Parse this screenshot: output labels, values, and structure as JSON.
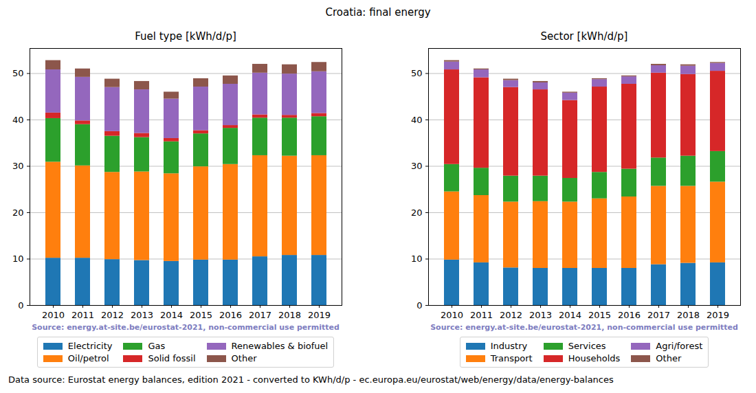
{
  "title": "Croatia: final energy",
  "caption": "Data source: Eurostat energy balances, edition 2021 - converted to KWh/d/p - ec.europa.eu/eurostat/web/energy/data/energy-balances",
  "chart_data": [
    {
      "type": "bar",
      "title": "Fuel type [kWh/d/p]",
      "annotations": [
        "Source: energy.at-site.be/eurostat-2021, non-commercial use permitted"
      ],
      "categories": [
        "2010",
        "2011",
        "2012",
        "2013",
        "2014",
        "2015",
        "2016",
        "2017",
        "2018",
        "2019"
      ],
      "series": [
        {
          "name": "Electricity",
          "color": "#1f77b4",
          "values": [
            10.2,
            10.2,
            9.9,
            9.7,
            9.5,
            9.8,
            9.8,
            10.5,
            10.8,
            10.8
          ]
        },
        {
          "name": "Oil/petrol",
          "color": "#ff7f0e",
          "values": [
            20.7,
            19.9,
            18.8,
            19.1,
            18.9,
            20.1,
            20.6,
            21.8,
            21.4,
            21.5
          ]
        },
        {
          "name": "Gas",
          "color": "#2ca02c",
          "values": [
            9.4,
            8.9,
            7.8,
            7.4,
            6.9,
            7.1,
            7.8,
            8.1,
            8.2,
            8.4
          ]
        },
        {
          "name": "Solid fossil",
          "color": "#d62728",
          "values": [
            1.2,
            0.8,
            1.0,
            0.9,
            0.7,
            0.7,
            0.6,
            0.7,
            0.6,
            0.7
          ]
        },
        {
          "name": "Renewables & biofuel",
          "color": "#9467bd",
          "values": [
            9.3,
            9.4,
            9.5,
            9.4,
            8.5,
            9.4,
            8.9,
            9.0,
            8.9,
            9.0
          ]
        },
        {
          "name": "Other",
          "color": "#8c564b",
          "values": [
            2.0,
            1.8,
            1.8,
            1.8,
            1.5,
            1.8,
            1.8,
            1.9,
            2.0,
            2.0
          ]
        }
      ],
      "ylim": [
        0,
        55.4
      ],
      "yticks": [
        0,
        10,
        20,
        30,
        40,
        50
      ],
      "grid": true,
      "stacked": true,
      "legend": "bottom"
    },
    {
      "type": "bar",
      "title": "Sector [kWh/d/p]",
      "annotations": [
        "Source: energy.at-site.be/eurostat-2021, non-commercial use permitted"
      ],
      "categories": [
        "2010",
        "2011",
        "2012",
        "2013",
        "2014",
        "2015",
        "2016",
        "2017",
        "2018",
        "2019"
      ],
      "series": [
        {
          "name": "Industry",
          "color": "#1f77b4",
          "values": [
            9.8,
            9.2,
            8.1,
            8.0,
            8.0,
            8.0,
            8.0,
            8.8,
            9.1,
            9.2
          ]
        },
        {
          "name": "Transport",
          "color": "#ff7f0e",
          "values": [
            14.7,
            14.5,
            14.2,
            14.4,
            14.3,
            15.0,
            15.4,
            16.9,
            16.6,
            17.4
          ]
        },
        {
          "name": "Services",
          "color": "#2ca02c",
          "values": [
            5.9,
            5.9,
            5.6,
            5.5,
            5.1,
            5.7,
            6.0,
            6.1,
            6.5,
            6.6
          ]
        },
        {
          "name": "Households",
          "color": "#d62728",
          "values": [
            20.4,
            19.5,
            19.1,
            18.6,
            16.8,
            18.4,
            18.3,
            18.3,
            17.6,
            17.3
          ]
        },
        {
          "name": "Agri/forest",
          "color": "#9467bd",
          "values": [
            1.7,
            1.7,
            1.5,
            1.5,
            1.6,
            1.6,
            1.6,
            1.6,
            1.8,
            1.7
          ]
        },
        {
          "name": "Other",
          "color": "#8c564b",
          "values": [
            0.3,
            0.2,
            0.3,
            0.3,
            0.2,
            0.2,
            0.2,
            0.3,
            0.3,
            0.2
          ]
        }
      ],
      "ylim": [
        0,
        55.4
      ],
      "yticks": [
        0,
        10,
        20,
        30,
        40,
        50
      ],
      "grid": true,
      "stacked": true,
      "legend": "bottom"
    }
  ]
}
